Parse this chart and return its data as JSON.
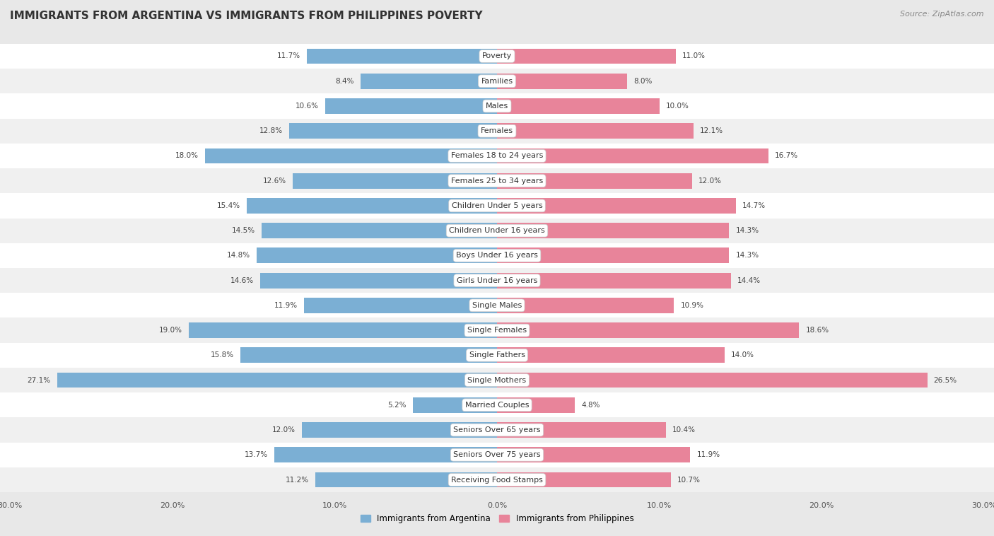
{
  "title": "IMMIGRANTS FROM ARGENTINA VS IMMIGRANTS FROM PHILIPPINES POVERTY",
  "source": "Source: ZipAtlas.com",
  "categories": [
    "Poverty",
    "Families",
    "Males",
    "Females",
    "Females 18 to 24 years",
    "Females 25 to 34 years",
    "Children Under 5 years",
    "Children Under 16 years",
    "Boys Under 16 years",
    "Girls Under 16 years",
    "Single Males",
    "Single Females",
    "Single Fathers",
    "Single Mothers",
    "Married Couples",
    "Seniors Over 65 years",
    "Seniors Over 75 years",
    "Receiving Food Stamps"
  ],
  "argentina_values": [
    11.7,
    8.4,
    10.6,
    12.8,
    18.0,
    12.6,
    15.4,
    14.5,
    14.8,
    14.6,
    11.9,
    19.0,
    15.8,
    27.1,
    5.2,
    12.0,
    13.7,
    11.2
  ],
  "philippines_values": [
    11.0,
    8.0,
    10.0,
    12.1,
    16.7,
    12.0,
    14.7,
    14.3,
    14.3,
    14.4,
    10.9,
    18.6,
    14.0,
    26.5,
    4.8,
    10.4,
    11.9,
    10.7
  ],
  "argentina_color": "#7bafd4",
  "philippines_color": "#e8849a",
  "argentina_label": "Immigrants from Argentina",
  "philippines_label": "Immigrants from Philippines",
  "axis_max": 30.0,
  "background_color": "#e8e8e8",
  "row_color_odd": "#f0f0f0",
  "row_color_even": "#ffffff",
  "title_fontsize": 11,
  "source_fontsize": 8,
  "label_fontsize": 8,
  "value_fontsize": 7.5,
  "legend_fontsize": 8.5,
  "axis_label_fontsize": 8
}
